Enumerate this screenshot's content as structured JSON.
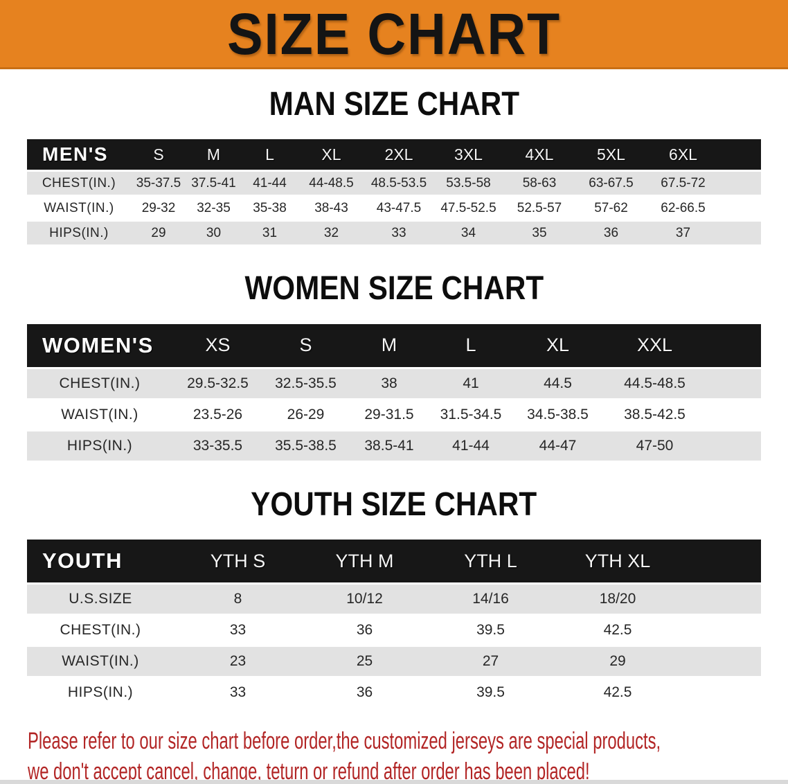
{
  "banner": {
    "title": "SIZE CHART"
  },
  "sections": [
    {
      "id": "men",
      "heading": "MAN SIZE CHART",
      "table": {
        "header_label": "MEN'S",
        "columns": [
          "S",
          "M",
          "L",
          "XL",
          "2XL",
          "3XL",
          "4XL",
          "5XL",
          "6XL"
        ],
        "rows": [
          {
            "label": "CHEST(IN.)",
            "values": [
              "35-37.5",
              "37.5-41",
              "41-44",
              "44-48.5",
              "48.5-53.5",
              "53.5-58",
              "58-63",
              "63-67.5",
              "67.5-72"
            ]
          },
          {
            "label": "WAIST(IN.)",
            "values": [
              "29-32",
              "32-35",
              "35-38",
              "38-43",
              "43-47.5",
              "47.5-52.5",
              "52.5-57",
              "57-62",
              "62-66.5"
            ]
          },
          {
            "label": "HIPS(IN.)",
            "values": [
              "29",
              "30",
              "31",
              "32",
              "33",
              "34",
              "35",
              "36",
              "37"
            ]
          }
        ]
      }
    },
    {
      "id": "women",
      "heading": "WOMEN SIZE CHART",
      "table": {
        "header_label": "WOMEN'S",
        "columns": [
          "XS",
          "S",
          "M",
          "L",
          "XL",
          "XXL"
        ],
        "rows": [
          {
            "label": "CHEST(IN.)",
            "values": [
              "29.5-32.5",
              "32.5-35.5",
              "38",
              "41",
              "44.5",
              "44.5-48.5"
            ]
          },
          {
            "label": "WAIST(IN.)",
            "values": [
              "23.5-26",
              "26-29",
              "29-31.5",
              "31.5-34.5",
              "34.5-38.5",
              "38.5-42.5"
            ]
          },
          {
            "label": "HIPS(IN.)",
            "values": [
              "33-35.5",
              "35.5-38.5",
              "38.5-41",
              "41-44",
              "44-47",
              "47-50"
            ]
          }
        ]
      }
    },
    {
      "id": "youth",
      "heading": "YOUTH SIZE CHART",
      "table": {
        "header_label": "YOUTH",
        "columns": [
          "YTH S",
          "YTH M",
          "YTH L",
          "YTH XL"
        ],
        "rows": [
          {
            "label": "U.S.SIZE",
            "values": [
              "8",
              "10/12",
              "14/16",
              "18/20"
            ]
          },
          {
            "label": "CHEST(IN.)",
            "values": [
              "33",
              "36",
              "39.5",
              "42.5"
            ]
          },
          {
            "label": "WAIST(IN.)",
            "values": [
              "23",
              "25",
              "27",
              "29"
            ]
          },
          {
            "label": "HIPS(IN.)",
            "values": [
              "33",
              "36",
              "39.5",
              "42.5"
            ]
          }
        ]
      }
    }
  ],
  "disclaimer": {
    "line1": "Please refer to our size chart before order,the customized jerseys are special products,",
    "line2": "we don't accept cancel, change, teturn or refund after order has been placed!"
  },
  "colors": {
    "banner_bg": "#e6821f",
    "banner_edge": "#c96f15",
    "header_bar": "#171717",
    "row_gray": "#e2e2e2",
    "row_white": "#ffffff",
    "disclaimer_red": "#b22525"
  }
}
